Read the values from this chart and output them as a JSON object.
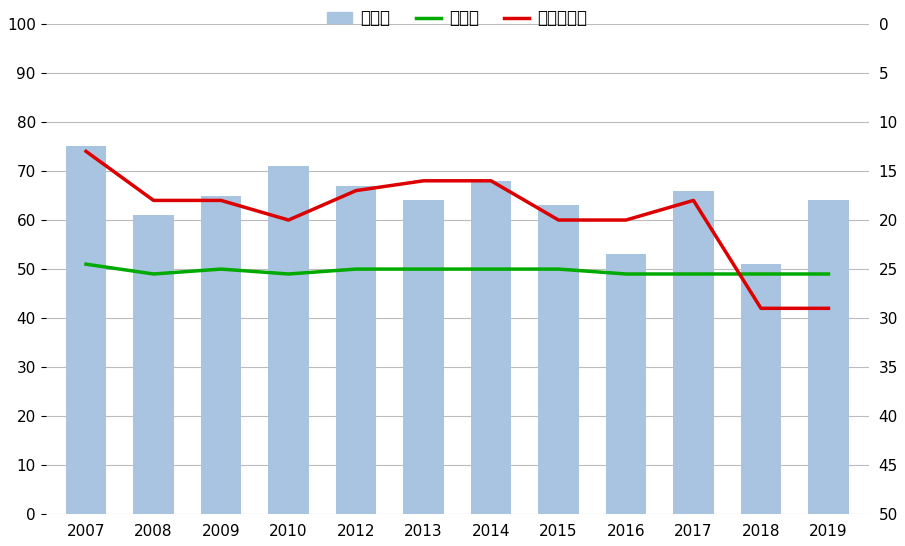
{
  "years": [
    2007,
    2008,
    2009,
    2010,
    2012,
    2013,
    2014,
    2015,
    2016,
    2017,
    2018,
    2019
  ],
  "seito_rate": [
    75,
    61,
    65,
    71,
    67,
    64,
    68,
    63,
    53,
    66,
    51,
    64
  ],
  "hensa": [
    51,
    49,
    50,
    49,
    50,
    50,
    50,
    50,
    49,
    49,
    49,
    49
  ],
  "ranking": [
    13,
    18,
    18,
    20,
    17,
    16,
    16,
    20,
    20,
    18,
    29,
    29
  ],
  "bar_color": "#a8c4e0",
  "hensa_color": "#00aa00",
  "ranking_color": "#dd0000",
  "left_ylim": [
    0,
    100
  ],
  "right_ylim": [
    50,
    0
  ],
  "left_yticks": [
    0,
    10,
    20,
    30,
    40,
    50,
    60,
    70,
    80,
    90,
    100
  ],
  "right_yticks": [
    0,
    5,
    10,
    15,
    20,
    25,
    30,
    35,
    40,
    45,
    50
  ],
  "legend_labels": [
    "正答率",
    "偏差値",
    "ランキング"
  ],
  "background_color": "#ffffff",
  "grid_color": "#bbbbbb"
}
